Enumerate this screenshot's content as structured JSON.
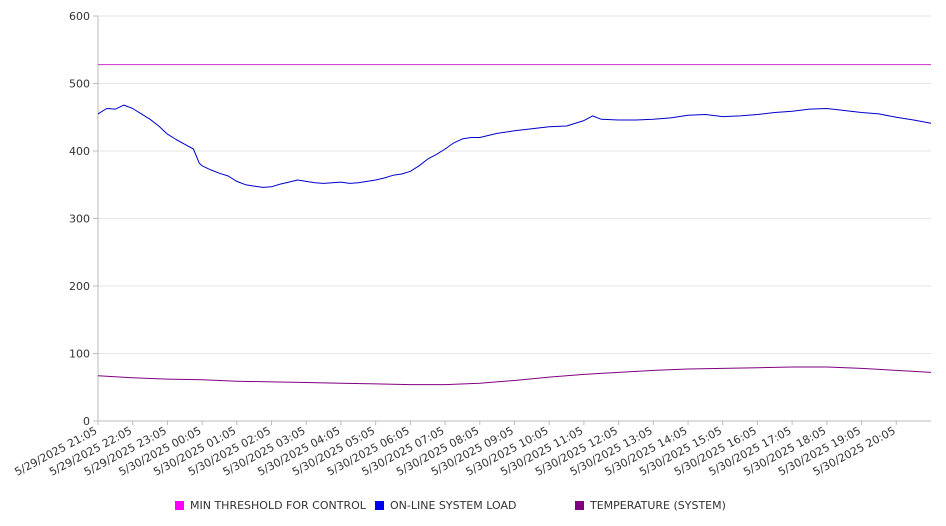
{
  "chart_data": {
    "type": "line",
    "title": "",
    "xlabel": "",
    "ylabel": "",
    "ylim": [
      0,
      600
    ],
    "y_ticks": [
      0,
      100,
      200,
      300,
      400,
      500,
      600
    ],
    "grid": "horizontal",
    "legend_position": "bottom",
    "x_start": "5/29/2025 21:05",
    "x_tick_labels": [
      "5/29/2025 21:05",
      "5/29/2025 22:05",
      "5/29/2025 23:05",
      "5/30/2025 00:05",
      "5/30/2025 01:05",
      "5/30/2025 02:05",
      "5/30/2025 03:05",
      "5/30/2025 04:05",
      "5/30/2025 05:05",
      "5/30/2025 06:05",
      "5/30/2025 07:05",
      "5/30/2025 08:05",
      "5/30/2025 09:05",
      "5/30/2025 10:05",
      "5/30/2025 11:05",
      "5/30/2025 12:05",
      "5/30/2025 13:05",
      "5/30/2025 14:05",
      "5/30/2025 15:05",
      "5/30/2025 16:05",
      "5/30/2025 17:05",
      "5/30/2025 18:05",
      "5/30/2025 19:05",
      "5/30/2025 20:05"
    ],
    "series": [
      {
        "name": "MIN THRESHOLD FOR CONTROL",
        "color": "#cc33cc",
        "x": [
          "5/29/2025 21:05",
          "5/30/2025 21:05"
        ],
        "values": [
          528,
          528
        ]
      },
      {
        "name": "ON-LINE SYSTEM LOAD",
        "color": "#0000cc",
        "x": [
          "5/29/2025 21:05",
          "5/29/2025 21:20",
          "5/29/2025 21:35",
          "5/29/2025 21:50",
          "5/29/2025 22:05",
          "5/29/2025 22:20",
          "5/29/2025 22:35",
          "5/29/2025 22:50",
          "5/29/2025 23:05",
          "5/29/2025 23:20",
          "5/29/2025 23:35",
          "5/29/2025 23:50",
          "5/30/2025 00:00",
          "5/30/2025 00:05",
          "5/30/2025 00:20",
          "5/30/2025 00:35",
          "5/30/2025 00:50",
          "5/30/2025 01:05",
          "5/30/2025 01:20",
          "5/30/2025 01:35",
          "5/30/2025 01:50",
          "5/30/2025 02:05",
          "5/30/2025 02:20",
          "5/30/2025 02:35",
          "5/30/2025 02:50",
          "5/30/2025 03:05",
          "5/30/2025 03:20",
          "5/30/2025 03:35",
          "5/30/2025 03:50",
          "5/30/2025 04:05",
          "5/30/2025 04:20",
          "5/30/2025 04:35",
          "5/30/2025 04:50",
          "5/30/2025 05:05",
          "5/30/2025 05:20",
          "5/30/2025 05:35",
          "5/30/2025 05:50",
          "5/30/2025 06:05",
          "5/30/2025 06:20",
          "5/30/2025 06:35",
          "5/30/2025 06:50",
          "5/30/2025 07:05",
          "5/30/2025 07:20",
          "5/30/2025 07:35",
          "5/30/2025 07:50",
          "5/30/2025 08:05",
          "5/30/2025 08:35",
          "5/30/2025 09:05",
          "5/30/2025 09:35",
          "5/30/2025 10:05",
          "5/30/2025 10:35",
          "5/30/2025 11:05",
          "5/30/2025 11:20",
          "5/30/2025 11:35",
          "5/30/2025 12:05",
          "5/30/2025 12:35",
          "5/30/2025 13:05",
          "5/30/2025 13:35",
          "5/30/2025 14:05",
          "5/30/2025 14:35",
          "5/30/2025 15:05",
          "5/30/2025 15:35",
          "5/30/2025 16:05",
          "5/30/2025 16:35",
          "5/30/2025 17:05",
          "5/30/2025 17:35",
          "5/30/2025 18:05",
          "5/30/2025 18:35",
          "5/30/2025 19:05",
          "5/30/2025 19:35",
          "5/30/2025 20:05",
          "5/30/2025 20:35",
          "5/30/2025 21:05"
        ],
        "values": [
          455,
          463,
          462,
          468,
          463,
          455,
          447,
          437,
          425,
          417,
          410,
          403,
          382,
          378,
          372,
          367,
          363,
          355,
          350,
          348,
          346,
          347,
          351,
          354,
          357,
          355,
          353,
          352,
          353,
          354,
          352,
          353,
          355,
          357,
          360,
          364,
          366,
          370,
          378,
          388,
          395,
          403,
          412,
          418,
          420,
          420,
          426,
          430,
          433,
          436,
          437,
          445,
          452,
          447,
          446,
          446,
          447,
          449,
          453,
          454,
          451,
          452,
          454,
          457,
          459,
          462,
          463,
          460,
          457,
          455,
          450,
          446,
          441
        ]
      },
      {
        "name": "TEMPERATURE (SYSTEM)",
        "color": "#800080",
        "x": [
          "5/29/2025 21:05",
          "5/29/2025 22:05",
          "5/29/2025 23:05",
          "5/30/2025 00:05",
          "5/30/2025 01:05",
          "5/30/2025 02:05",
          "5/30/2025 03:05",
          "5/30/2025 04:05",
          "5/30/2025 05:05",
          "5/30/2025 06:05",
          "5/30/2025 07:05",
          "5/30/2025 08:05",
          "5/30/2025 09:05",
          "5/30/2025 10:05",
          "5/30/2025 11:05",
          "5/30/2025 12:05",
          "5/30/2025 13:05",
          "5/30/2025 14:05",
          "5/30/2025 15:05",
          "5/30/2025 16:05",
          "5/30/2025 17:05",
          "5/30/2025 18:05",
          "5/30/2025 19:05",
          "5/30/2025 20:05",
          "5/30/2025 21:05"
        ],
        "values": [
          67,
          64,
          62,
          61,
          59,
          58,
          57,
          56,
          55,
          54,
          54,
          56,
          60,
          65,
          69,
          72,
          75,
          77,
          78,
          79,
          80,
          80,
          78,
          75,
          72
        ]
      }
    ]
  },
  "legend": {
    "items": [
      {
        "label": "MIN THRESHOLD FOR CONTROL",
        "color": "#ff00ff"
      },
      {
        "label": "ON-LINE SYSTEM LOAD",
        "color": "#0000ee"
      },
      {
        "label": "TEMPERATURE (SYSTEM)",
        "color": "#800080"
      }
    ]
  }
}
